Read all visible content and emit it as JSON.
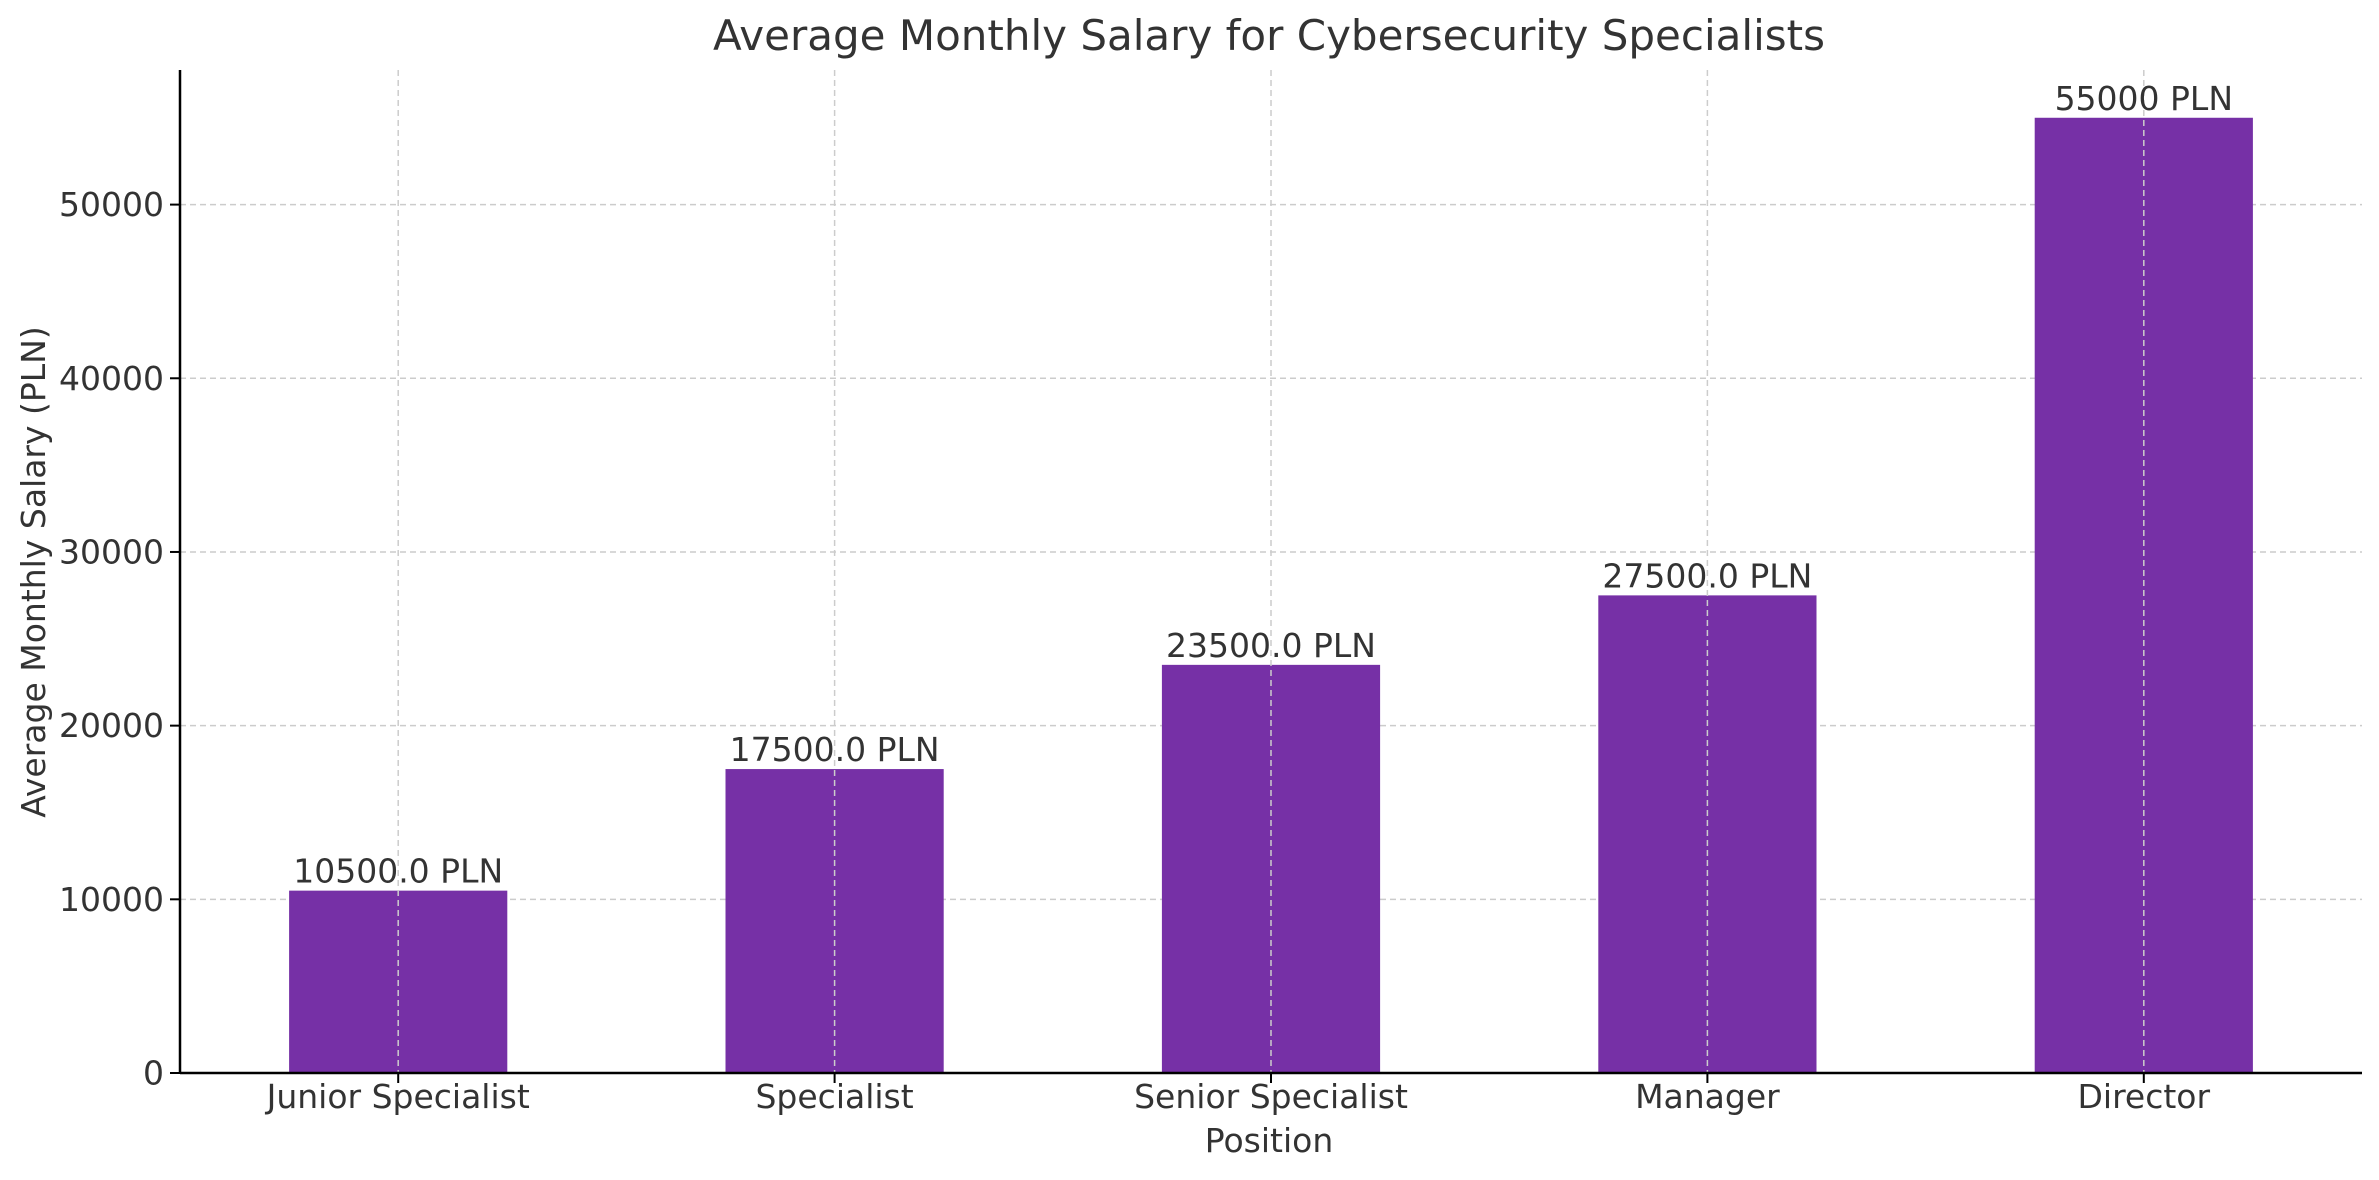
{
  "chart_data": {
    "type": "bar",
    "title": "Average Monthly Salary for Cybersecurity Specialists",
    "xlabel": "Position",
    "ylabel": "Average Monthly Salary (PLN)",
    "categories": [
      "Junior Specialist",
      "Specialist",
      "Senior Specialist",
      "Manager",
      "Director"
    ],
    "values": [
      10500,
      17500,
      23500,
      27500,
      55000
    ],
    "data_labels": [
      "10500.0 PLN",
      "17500.0 PLN",
      "23500.0 PLN",
      "27500.0 PLN",
      "55000 PLN"
    ],
    "ylim": [
      0,
      57750
    ],
    "yticks": [
      0,
      10000,
      20000,
      30000,
      40000,
      50000
    ],
    "ytick_labels": [
      "0",
      "10000",
      "20000",
      "30000",
      "40000",
      "50000"
    ],
    "grid": true,
    "legend": "none",
    "colors": {
      "bar": "#7630A6",
      "text": "#333333",
      "grid": "#CCCCCC",
      "axis": "#000000"
    }
  }
}
